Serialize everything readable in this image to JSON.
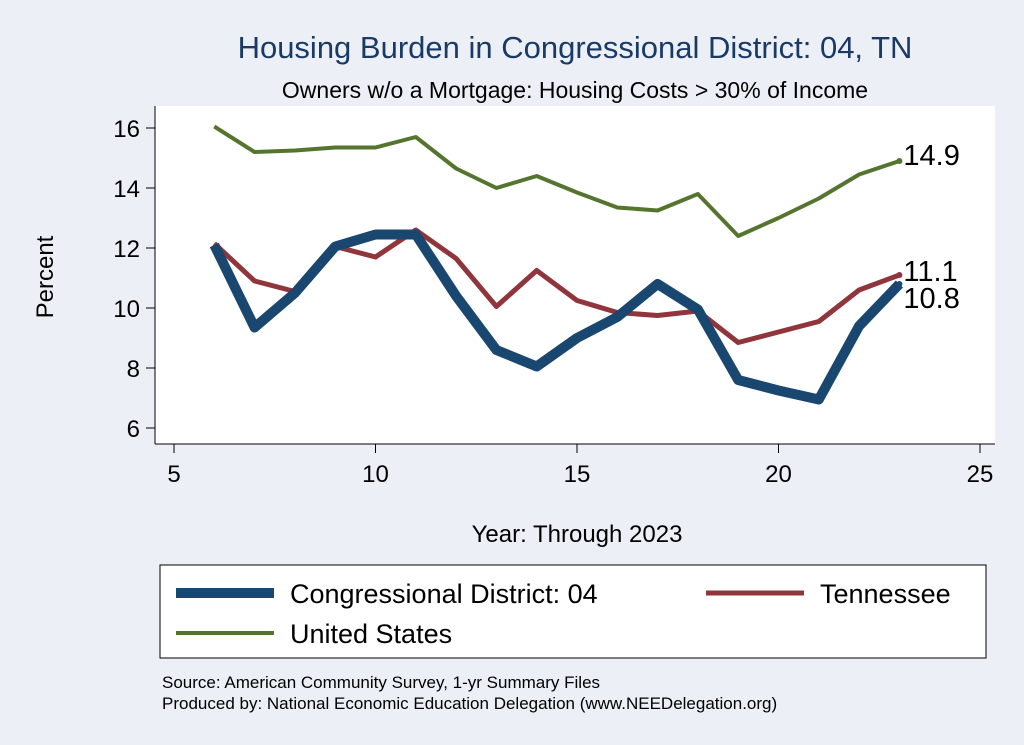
{
  "chart_data": {
    "type": "line",
    "title": "Housing Burden in Congressional District:  04, TN",
    "subtitle": "Owners w/o a Mortgage: Housing Costs > 30% of Income",
    "xlabel": "Year: Through 2023",
    "ylabel": "Percent",
    "xlim": [
      5,
      25
    ],
    "ylim": [
      5.7,
      16.6
    ],
    "xticks": [
      5,
      10,
      15,
      20,
      25
    ],
    "yticks": [
      6,
      8,
      10,
      12,
      14,
      16
    ],
    "grid": false,
    "legend_position": "bottom",
    "x": [
      6,
      7,
      8,
      9,
      10,
      11,
      12,
      13,
      14,
      15,
      16,
      17,
      18,
      19,
      20,
      21,
      22,
      23
    ],
    "series": [
      {
        "name": "Congressional District:  04",
        "color": "#1a476f",
        "values": [
          12.1,
          9.35,
          10.5,
          12.05,
          12.45,
          12.45,
          10.4,
          8.6,
          8.05,
          9.0,
          9.7,
          10.8,
          9.95,
          7.6,
          7.25,
          6.95,
          9.4,
          10.8
        ],
        "end_label": "10.8"
      },
      {
        "name": "Tennessee",
        "color": "#90353b",
        "values": [
          12.15,
          10.9,
          10.55,
          12.05,
          11.7,
          12.6,
          11.65,
          10.05,
          11.25,
          10.25,
          9.85,
          9.75,
          9.9,
          8.85,
          9.2,
          9.55,
          10.6,
          11.1
        ],
        "end_label": "11.1"
      },
      {
        "name": "United States",
        "color": "#55752f",
        "values": [
          16.05,
          15.2,
          15.25,
          15.35,
          15.35,
          15.7,
          14.65,
          14.0,
          14.4,
          13.85,
          13.35,
          13.25,
          13.8,
          12.4,
          13.0,
          13.65,
          14.45,
          14.9
        ],
        "end_label": "14.9"
      }
    ]
  },
  "source": {
    "line1": "Source: American Community Survey, 1-yr Summary Files",
    "line2": "Produced by: National Economic Education Delegation (www.NEEDelegation.org)"
  }
}
